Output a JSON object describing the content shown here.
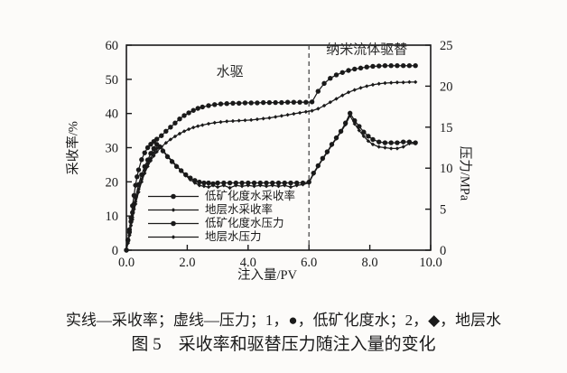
{
  "colors": {
    "ink": "#1a1a1a",
    "paper": "#fcfbf9",
    "divider": "#4a4a4a"
  },
  "figure": {
    "caption_line1": "实线—采收率；虚线—压力；1，●，低矿化度水；2，◆，地层水",
    "caption_line2": "图 5　采收率和驱替压力随注入量的变化"
  },
  "legend": {
    "items": [
      {
        "label": "低矿化度水采收率",
        "marker": "circle"
      },
      {
        "label": "地层水采收率",
        "marker": "diamond"
      },
      {
        "label": "低矿化度水压力",
        "marker": "circle"
      },
      {
        "label": "地层水压力",
        "marker": "diamond"
      }
    ]
  },
  "chart_data": {
    "type": "line",
    "title": "",
    "xlabel": "注入量/PV",
    "ylabel_left": "采收率/%",
    "ylabel_right": "压力/MPa",
    "xlim": [
      0,
      10
    ],
    "ylim_left": [
      0,
      60
    ],
    "ylim_right": [
      0,
      25
    ],
    "x_ticks": [
      "0.0",
      "2.0",
      "4.0",
      "6.0",
      "8.0",
      "10.0"
    ],
    "y_left_ticks": [
      "0",
      "10",
      "20",
      "30",
      "40",
      "50",
      "60"
    ],
    "y_right_ticks": [
      "0",
      "5",
      "10",
      "15",
      "20",
      "25"
    ],
    "grid": false,
    "divider_x": 6.0,
    "region_labels": [
      {
        "text": "水驱",
        "x": 3.4,
        "y": 51
      },
      {
        "text": "纳米流体驱替",
        "x": 7.9,
        "y": 57.5
      }
    ],
    "series": [
      {
        "name": "低矿化度水采收率",
        "axis": "left",
        "marker": "circle",
        "points": [
          [
            0,
            0
          ],
          [
            0.05,
            3
          ],
          [
            0.1,
            6
          ],
          [
            0.15,
            9.5
          ],
          [
            0.2,
            13
          ],
          [
            0.25,
            16
          ],
          [
            0.3,
            19
          ],
          [
            0.35,
            21.5
          ],
          [
            0.4,
            23.5
          ],
          [
            0.5,
            26.5
          ],
          [
            0.6,
            28.5
          ],
          [
            0.7,
            30
          ],
          [
            0.8,
            31
          ],
          [
            0.9,
            31.8
          ],
          [
            1.0,
            32.5
          ],
          [
            1.15,
            33.5
          ],
          [
            1.3,
            34.8
          ],
          [
            1.45,
            36
          ],
          [
            1.6,
            37.2
          ],
          [
            1.75,
            38.4
          ],
          [
            1.9,
            39.4
          ],
          [
            2.05,
            40.2
          ],
          [
            2.2,
            40.9
          ],
          [
            2.35,
            41.5
          ],
          [
            2.5,
            41.9
          ],
          [
            2.7,
            42.3
          ],
          [
            2.9,
            42.6
          ],
          [
            3.1,
            42.8
          ],
          [
            3.3,
            42.9
          ],
          [
            3.5,
            43
          ],
          [
            3.7,
            43
          ],
          [
            3.9,
            43.1
          ],
          [
            4.1,
            43.1
          ],
          [
            4.3,
            43.1
          ],
          [
            4.5,
            43.2
          ],
          [
            4.7,
            43.2
          ],
          [
            4.9,
            43.2
          ],
          [
            5.1,
            43.2
          ],
          [
            5.3,
            43.3
          ],
          [
            5.5,
            43.3
          ],
          [
            5.7,
            43.3
          ],
          [
            5.9,
            43.3
          ],
          [
            6.1,
            43.4
          ],
          [
            6.3,
            46.5
          ],
          [
            6.5,
            48.8
          ],
          [
            6.7,
            50.3
          ],
          [
            6.9,
            51.3
          ],
          [
            7.1,
            52
          ],
          [
            7.3,
            52.6
          ],
          [
            7.5,
            53
          ],
          [
            7.7,
            53.3
          ],
          [
            7.9,
            53.6
          ],
          [
            8.1,
            53.8
          ],
          [
            8.3,
            53.9
          ],
          [
            8.5,
            54
          ],
          [
            8.7,
            54
          ],
          [
            8.9,
            54
          ],
          [
            9.1,
            54
          ],
          [
            9.3,
            54
          ],
          [
            9.5,
            54
          ]
        ]
      },
      {
        "name": "地层水采收率",
        "axis": "left",
        "marker": "diamond",
        "points": [
          [
            0,
            0
          ],
          [
            0.05,
            2
          ],
          [
            0.1,
            4.5
          ],
          [
            0.2,
            9
          ],
          [
            0.3,
            13.5
          ],
          [
            0.4,
            17
          ],
          [
            0.5,
            20
          ],
          [
            0.6,
            22.5
          ],
          [
            0.7,
            24.5
          ],
          [
            0.8,
            26.2
          ],
          [
            0.9,
            27.6
          ],
          [
            1.0,
            28.8
          ],
          [
            1.15,
            30.2
          ],
          [
            1.3,
            31.4
          ],
          [
            1.45,
            32.4
          ],
          [
            1.6,
            33.3
          ],
          [
            1.75,
            34.1
          ],
          [
            1.9,
            34.8
          ],
          [
            2.05,
            35.4
          ],
          [
            2.2,
            35.9
          ],
          [
            2.35,
            36.3
          ],
          [
            2.5,
            36.6
          ],
          [
            2.7,
            37
          ],
          [
            2.9,
            37.3
          ],
          [
            3.1,
            37.5
          ],
          [
            3.3,
            37.7
          ],
          [
            3.5,
            37.8
          ],
          [
            3.7,
            37.9
          ],
          [
            3.9,
            38
          ],
          [
            4.1,
            38.1
          ],
          [
            4.3,
            38.3
          ],
          [
            4.5,
            38.5
          ],
          [
            4.7,
            38.7
          ],
          [
            4.9,
            39
          ],
          [
            5.1,
            39.3
          ],
          [
            5.3,
            39.6
          ],
          [
            5.5,
            39.9
          ],
          [
            5.7,
            40.2
          ],
          [
            5.9,
            40.5
          ],
          [
            6.1,
            40.8
          ],
          [
            6.3,
            41.4
          ],
          [
            6.5,
            42.3
          ],
          [
            6.7,
            43.3
          ],
          [
            6.9,
            44.3
          ],
          [
            7.1,
            45.3
          ],
          [
            7.3,
            46.2
          ],
          [
            7.5,
            46.9
          ],
          [
            7.7,
            47.5
          ],
          [
            7.9,
            48
          ],
          [
            8.1,
            48.4
          ],
          [
            8.3,
            48.7
          ],
          [
            8.5,
            48.9
          ],
          [
            8.7,
            49
          ],
          [
            8.9,
            49.1
          ],
          [
            9.1,
            49.1
          ],
          [
            9.3,
            49.2
          ],
          [
            9.5,
            49.2
          ]
        ]
      },
      {
        "name": "低矿化度水压力",
        "axis": "right",
        "marker": "circle",
        "points": [
          [
            0,
            0
          ],
          [
            0.05,
            1.2
          ],
          [
            0.1,
            2.2
          ],
          [
            0.15,
            3.5
          ],
          [
            0.2,
            4.6
          ],
          [
            0.25,
            5.6
          ],
          [
            0.3,
            6.5
          ],
          [
            0.4,
            8
          ],
          [
            0.5,
            9.2
          ],
          [
            0.6,
            10.2
          ],
          [
            0.7,
            11
          ],
          [
            0.8,
            11.8
          ],
          [
            0.9,
            12.4
          ],
          [
            1.0,
            12.9
          ],
          [
            1.1,
            12.6
          ],
          [
            1.2,
            12.1
          ],
          [
            1.35,
            11.4
          ],
          [
            1.5,
            10.8
          ],
          [
            1.65,
            10.2
          ],
          [
            1.8,
            9.7
          ],
          [
            1.95,
            9.2
          ],
          [
            2.1,
            8.8
          ],
          [
            2.25,
            8.5
          ],
          [
            2.4,
            8.3
          ],
          [
            2.55,
            8.2
          ],
          [
            2.7,
            8.2
          ],
          [
            2.85,
            8.1
          ],
          [
            3.0,
            8.2
          ],
          [
            3.2,
            8.2
          ],
          [
            3.4,
            8.2
          ],
          [
            3.6,
            8.2
          ],
          [
            3.8,
            8.2
          ],
          [
            4.0,
            8.2
          ],
          [
            4.2,
            8.2
          ],
          [
            4.4,
            8.2
          ],
          [
            4.6,
            8.2
          ],
          [
            4.8,
            8.2
          ],
          [
            5.0,
            8.2
          ],
          [
            5.2,
            8.2
          ],
          [
            5.4,
            8.2
          ],
          [
            5.6,
            8.2
          ],
          [
            5.8,
            8.2
          ],
          [
            6.0,
            8.3
          ],
          [
            6.15,
            9.4
          ],
          [
            6.3,
            10.3
          ],
          [
            6.45,
            11.2
          ],
          [
            6.6,
            12
          ],
          [
            6.75,
            12.9
          ],
          [
            6.9,
            13.7
          ],
          [
            7.05,
            14.5
          ],
          [
            7.2,
            15.5
          ],
          [
            7.35,
            16.7
          ],
          [
            7.5,
            15.8
          ],
          [
            7.65,
            15.1
          ],
          [
            7.8,
            14.4
          ],
          [
            7.95,
            13.9
          ],
          [
            8.1,
            13.5
          ],
          [
            8.3,
            13.2
          ],
          [
            8.5,
            13.1
          ],
          [
            8.7,
            13.1
          ],
          [
            8.9,
            13.1
          ],
          [
            9.1,
            13.2
          ],
          [
            9.3,
            13.2
          ],
          [
            9.5,
            13.1
          ]
        ]
      },
      {
        "name": "地层水压力",
        "axis": "right",
        "marker": "diamond",
        "points": [
          [
            0,
            0
          ],
          [
            0.05,
            0.9
          ],
          [
            0.1,
            1.8
          ],
          [
            0.15,
            3
          ],
          [
            0.2,
            4
          ],
          [
            0.25,
            5
          ],
          [
            0.3,
            5.9
          ],
          [
            0.4,
            7.4
          ],
          [
            0.5,
            8.6
          ],
          [
            0.6,
            9.7
          ],
          [
            0.7,
            10.5
          ],
          [
            0.8,
            11.2
          ],
          [
            0.9,
            11.9
          ],
          [
            1.0,
            12.4
          ],
          [
            1.1,
            12.7
          ],
          [
            1.2,
            12.2
          ],
          [
            1.35,
            11.5
          ],
          [
            1.5,
            10.9
          ],
          [
            1.65,
            10.3
          ],
          [
            1.8,
            9.7
          ],
          [
            1.95,
            9.1
          ],
          [
            2.1,
            8.6
          ],
          [
            2.25,
            8.2
          ],
          [
            2.4,
            7.9
          ],
          [
            2.55,
            7.8
          ],
          [
            2.7,
            7.7
          ],
          [
            2.85,
            7.9
          ],
          [
            3.0,
            7.7
          ],
          [
            3.2,
            7.9
          ],
          [
            3.4,
            7.6
          ],
          [
            3.6,
            7.9
          ],
          [
            3.8,
            7.8
          ],
          [
            4.0,
            7.9
          ],
          [
            4.2,
            7.8
          ],
          [
            4.4,
            7.9
          ],
          [
            4.6,
            7.8
          ],
          [
            4.8,
            7.9
          ],
          [
            5.0,
            7.8
          ],
          [
            5.2,
            7.9
          ],
          [
            5.4,
            7.7
          ],
          [
            5.6,
            7.9
          ],
          [
            5.8,
            8.0
          ],
          [
            6.0,
            8.2
          ],
          [
            6.15,
            9.3
          ],
          [
            6.3,
            10.2
          ],
          [
            6.45,
            11.1
          ],
          [
            6.6,
            11.9
          ],
          [
            6.75,
            12.8
          ],
          [
            6.9,
            13.6
          ],
          [
            7.05,
            14.4
          ],
          [
            7.2,
            15.3
          ],
          [
            7.35,
            16.4
          ],
          [
            7.5,
            15.4
          ],
          [
            7.65,
            14.6
          ],
          [
            7.8,
            13.9
          ],
          [
            7.95,
            13.3
          ],
          [
            8.1,
            12.9
          ],
          [
            8.3,
            12.6
          ],
          [
            8.5,
            12.5
          ],
          [
            8.7,
            12.4
          ],
          [
            8.9,
            12.4
          ],
          [
            9.1,
            12.6
          ],
          [
            9.3,
            13.0
          ],
          [
            9.5,
            13.0
          ]
        ]
      }
    ]
  }
}
